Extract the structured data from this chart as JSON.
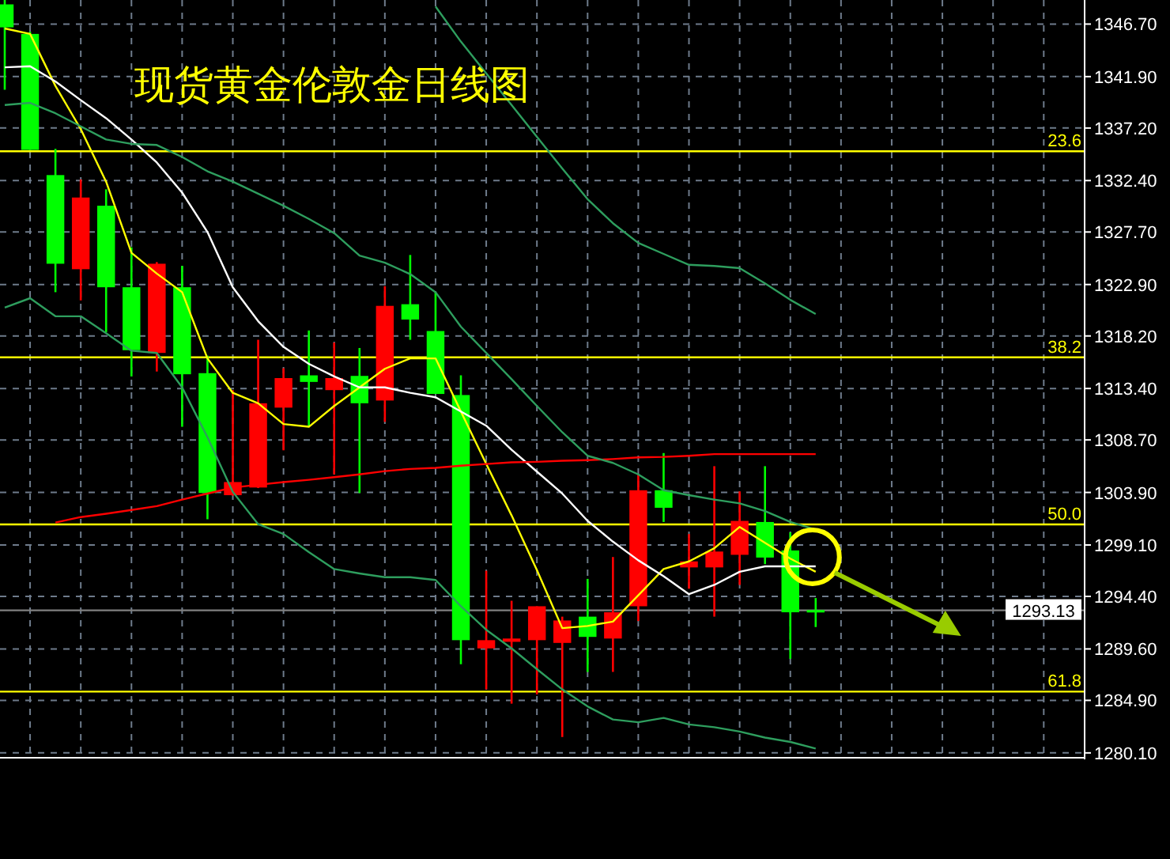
{
  "chart_data": {
    "type": "candlestick",
    "title": "现货黄金伦敦金日线图",
    "categories": [
      null,
      null,
      null,
      null,
      null,
      null,
      null,
      null,
      null,
      null,
      null,
      null,
      null,
      null,
      null,
      null,
      null,
      null,
      null,
      null,
      null,
      null,
      null,
      null,
      null,
      null,
      null,
      null,
      null,
      null,
      null,
      null,
      null
    ],
    "ohlc": [
      [
        1348.5,
        1348.9,
        1340.7,
        1346.4
      ],
      [
        1345.8,
        1346.0,
        1335.2,
        1335.2
      ],
      [
        1332.9,
        1335.3,
        1322.2,
        1324.8
      ],
      [
        1324.3,
        1332.5,
        1321.45,
        1330.85
      ],
      [
        1330.1,
        1331.6,
        1318.55,
        1322.65
      ],
      [
        1322.65,
        1326.3,
        1314.5,
        1316.9
      ],
      [
        1316.65,
        1324.95,
        1314.95,
        1324.8
      ],
      [
        1322.65,
        1324.6,
        1309.9,
        1314.7
      ],
      [
        1314.8,
        1316.4,
        1301.45,
        1303.85
      ],
      [
        1303.65,
        1313.25,
        1303.6,
        1304.85
      ],
      [
        1304.35,
        1317.85,
        1304.3,
        1312.05
      ],
      [
        1311.65,
        1315.25,
        1307.75,
        1314.35
      ],
      [
        1314.6,
        1318.7,
        1309.9,
        1314.0
      ],
      [
        1313.25,
        1317.6,
        1305.55,
        1314.35
      ],
      [
        1314.55,
        1317.1,
        1303.85,
        1312.05
      ],
      [
        1312.3,
        1322.75,
        1310.35,
        1320.95
      ],
      [
        1321.1,
        1325.6,
        1317.85,
        1319.7
      ],
      [
        1318.65,
        1322.2,
        1312.9,
        1312.9
      ],
      [
        1312.8,
        1314.6,
        1288.2,
        1290.4
      ],
      [
        1289.65,
        1296.75,
        1285.9,
        1290.4
      ],
      [
        1290.25,
        1294.0,
        1284.6,
        1290.55
      ],
      [
        1290.4,
        1293.5,
        1285.45,
        1293.5
      ],
      [
        1290.15,
        1292.55,
        1281.55,
        1292.2
      ],
      [
        1292.55,
        1296.0,
        1287.5,
        1290.7
      ],
      [
        1290.55,
        1298.0,
        1287.5,
        1292.95
      ],
      [
        1293.5,
        1305.55,
        1292.15,
        1304.1
      ],
      [
        1304.1,
        1307.5,
        1301.2,
        1302.5
      ],
      [
        1297.05,
        1300.1,
        1295.1,
        1297.6
      ],
      [
        1297.05,
        1306.3,
        1292.55,
        1298.5
      ],
      [
        1298.2,
        1304.0,
        1295.45,
        1301.3
      ],
      [
        1301.2,
        1306.3,
        1297.35,
        1297.95
      ],
      [
        1298.6,
        1300.25,
        1288.7,
        1292.95
      ],
      [
        1293.15,
        1294.25,
        1291.6,
        1293.1
      ]
    ],
    "colors": [
      "#00ff00",
      "#00ff00",
      "#00ff00",
      "#ff0000",
      "#00ff00",
      "#00ff00",
      "#ff0000",
      "#00ff00",
      "#00ff00",
      "#ff0000",
      "#ff0000",
      "#ff0000",
      "#00ff00",
      "#ff0000",
      "#00ff00",
      "#ff0000",
      "#00ff00",
      "#00ff00",
      "#00ff00",
      "#ff0000",
      "#ff0000",
      "#ff0000",
      "#ff0000",
      "#00ff00",
      "#ff0000",
      "#ff0000",
      "#00ff00",
      "#ff0000",
      "#ff0000",
      "#ff0000",
      "#00ff00",
      "#00ff00",
      "#00ff00"
    ],
    "series": [
      {
        "type": "line",
        "color": "#ffff00",
        "values": [
          1346.3,
          1345.8,
          1341.05,
          1337.1,
          1332.3,
          1325.8,
          1323.9,
          1322.2,
          1316.15,
          1313.0,
          1312.05,
          1310.15,
          1309.9,
          1311.8,
          1313.5,
          1315.2,
          1316.15,
          1316.15,
          1311.3,
          1306.5,
          1301.8,
          1296.8,
          1291.5,
          1291.7,
          1292.1,
          1294.5,
          1296.9,
          1297.6,
          1298.8,
          1300.75,
          1299.3,
          1297.85,
          1296.65
        ]
      },
      {
        "type": "line",
        "color": "#ffffff",
        "values": [
          1342.75,
          1342.85,
          1341.45,
          1339.75,
          1338.1,
          1336.15,
          1334.05,
          1331.3,
          1327.7,
          1322.65,
          1319.55,
          1317.2,
          1315.65,
          1314.5,
          1313.5,
          1313.5,
          1313.0,
          1312.6,
          1311.3,
          1310.0,
          1307.8,
          1305.8,
          1303.8,
          1301.3,
          1299.4,
          1297.7,
          1296.25,
          1294.6,
          1295.45,
          1296.65,
          1297.15,
          1297.15,
          1297.15
        ]
      },
      {
        "type": "line",
        "color": "#ff0000",
        "values": [
          null,
          null,
          1301.15,
          1301.65,
          1301.95,
          1302.3,
          1302.65,
          1303.25,
          1303.8,
          1304.35,
          1304.6,
          1304.85,
          1305.05,
          1305.3,
          1305.55,
          1305.85,
          1306.05,
          1306.15,
          1306.35,
          1306.5,
          1306.65,
          1306.7,
          1306.8,
          1306.85,
          1306.95,
          1307.1,
          1307.15,
          1307.25,
          1307.4,
          1307.4,
          1307.4,
          1307.4,
          1307.4
        ]
      },
      {
        "type": "line",
        "color": "#2e9e5e",
        "values": [
          null,
          null,
          null,
          null,
          null,
          null,
          null,
          null,
          null,
          null,
          null,
          null,
          null,
          null,
          null,
          null,
          null,
          1348.3,
          1345.1,
          1342.2,
          1339.3,
          1336.4,
          1333.5,
          1330.7,
          1328.5,
          1326.7,
          1325.7,
          1324.7,
          1324.6,
          1324.4,
          1323.0,
          1321.5,
          1320.2
        ]
      },
      {
        "type": "line",
        "color": "#2e9e5e",
        "values": [
          1339.3,
          1339.5,
          1338.55,
          1337.35,
          1336.15,
          1335.75,
          1335.65,
          1334.55,
          1333.25,
          1332.3,
          1331.2,
          1330.1,
          1328.9,
          1327.6,
          1325.55,
          1324.9,
          1323.85,
          1322.2,
          1319.05,
          1316.65,
          1314.25,
          1311.8,
          1309.4,
          1307.25,
          1306.6,
          1305.55,
          1304.1,
          1303.65,
          1303.25,
          1302.9,
          1302.2,
          1301.2,
          1300.5
        ]
      },
      {
        "type": "line",
        "color": "#2e9e5e",
        "values": [
          1320.8,
          1321.65,
          1320.0,
          1320.0,
          1318.45,
          1316.85,
          1316.65,
          1313.5,
          1308.95,
          1303.95,
          1301.0,
          1300.1,
          1298.45,
          1296.9,
          1296.5,
          1296.15,
          1296.15,
          1295.9,
          1293.5,
          1291.35,
          1289.65,
          1287.75,
          1285.9,
          1284.35,
          1283.15,
          1282.9,
          1283.3,
          1282.7,
          1282.45,
          1282.05,
          1281.5,
          1281.1,
          1280.5
        ]
      }
    ],
    "ylim": [
      1279.8,
      1348.9
    ],
    "yticks": [
      {
        "value": 1280.1,
        "label": "1280.10"
      },
      {
        "value": 1284.9,
        "label": "1284.90"
      },
      {
        "value": 1289.6,
        "label": "1289.60"
      },
      {
        "value": 1294.4,
        "label": "1294.40"
      },
      {
        "value": 1299.1,
        "label": "1299.10"
      },
      {
        "value": 1303.9,
        "label": "1303.90"
      },
      {
        "value": 1308.7,
        "label": "1308.70"
      },
      {
        "value": 1313.4,
        "label": "1313.40"
      },
      {
        "value": 1318.2,
        "label": "1318.20"
      },
      {
        "value": 1322.9,
        "label": "1322.90"
      },
      {
        "value": 1327.7,
        "label": "1327.70"
      },
      {
        "value": 1332.4,
        "label": "1332.40"
      },
      {
        "value": 1337.2,
        "label": "1337.20"
      },
      {
        "value": 1341.9,
        "label": "1341.90"
      },
      {
        "value": 1346.7,
        "label": "1346.70"
      }
    ],
    "ref_lines": [
      {
        "axis": "y",
        "value": 1335.08,
        "color": "#ffff00"
      },
      {
        "axis": "y",
        "value": 1316.25,
        "color": "#ffff00"
      },
      {
        "axis": "y",
        "value": 1300.98,
        "color": "#ffff00"
      },
      {
        "axis": "y",
        "value": 1285.7,
        "color": "#ffff00"
      },
      {
        "axis": "y",
        "value": 1293.13,
        "label": "1293.13",
        "color": "#808080"
      }
    ],
    "annotations": [
      {
        "text": "23.6",
        "y": 1335.08
      },
      {
        "text": "38.2",
        "y": 1316.25
      },
      {
        "text": "50.0",
        "y": 1300.98
      },
      {
        "text": "61.8",
        "y": 1285.7
      }
    ],
    "grid": true
  }
}
